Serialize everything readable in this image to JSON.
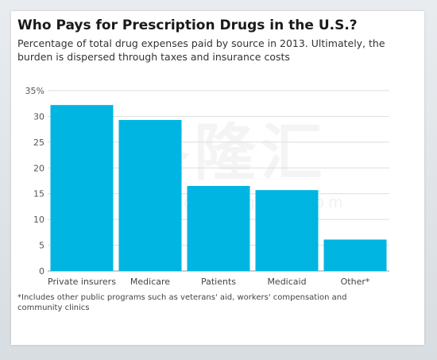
{
  "watermark": {
    "glyphs": "格隆汇",
    "url": "www.gelonghui.com"
  },
  "chart_data": {
    "type": "bar",
    "title": "Who Pays for Prescription Drugs in the U.S.?",
    "subtitle": "Percentage of total drug expenses paid by source in 2013. Ultimately, the burden is dispersed through taxes and insurance costs",
    "categories": [
      "Private insurers",
      "Medicare",
      "Patients",
      "Medicaid",
      "Other*"
    ],
    "values": [
      32.2,
      29.3,
      16.5,
      15.7,
      6.1
    ],
    "xlabel": "",
    "ylabel": "",
    "ylim": [
      0,
      35
    ],
    "yticks": [
      0,
      5,
      10,
      15,
      20,
      25,
      30,
      35
    ],
    "ytick_labels": [
      "0",
      "5",
      "10",
      "15",
      "20",
      "25",
      "30",
      "35%"
    ],
    "grid": true,
    "bar_color": "#00b5e2",
    "gridline_color": "#dddddd",
    "footnote": "*Includes other public programs such as veterans' aid, workers' compensation and community clinics"
  }
}
